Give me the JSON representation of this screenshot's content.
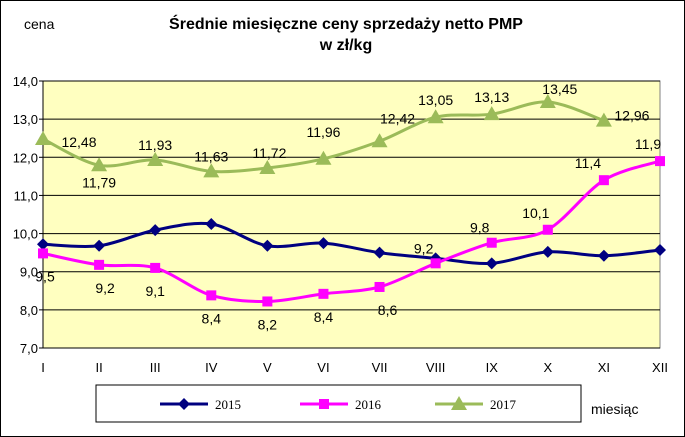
{
  "chart_data": {
    "type": "line",
    "title": "Średnie miesięczne ceny sprzedaży netto PMP",
    "subtitle": "w zł/kg",
    "ylabel": "cena",
    "xlabel": "miesiąc",
    "categories": [
      "I",
      "II",
      "III",
      "IV",
      "V",
      "VI",
      "VII",
      "VIII",
      "IX",
      "X",
      "XI",
      "XII"
    ],
    "ylim": [
      7.0,
      14.0
    ],
    "yticks": [
      "7,0",
      "8,0",
      "9,0",
      "10,0",
      "11,0",
      "12,0",
      "13,0",
      "14,0"
    ],
    "grid": true,
    "legend_position": "bottom",
    "plot_background": "#ffffc0",
    "series": [
      {
        "name": "2015",
        "color": "#000080",
        "marker": "diamond",
        "values": [
          9.72,
          9.68,
          10.09,
          10.25,
          9.68,
          9.75,
          9.5,
          9.35,
          9.22,
          9.52,
          9.42,
          9.57
        ],
        "labels": [
          "",
          "",
          "",
          "",
          "",
          "",
          "",
          "",
          "",
          "",
          "",
          ""
        ]
      },
      {
        "name": "2016",
        "color": "#ff00ff",
        "marker": "square",
        "values": [
          9.48,
          9.18,
          9.1,
          8.38,
          8.22,
          8.42,
          8.6,
          9.22,
          9.76,
          10.1,
          11.4,
          11.9
        ],
        "labels": [
          "9,5",
          "9,2",
          "9,1",
          "8,4",
          "8,2",
          "8,4",
          "8,6",
          "9,2",
          "9,8",
          "10,1",
          "11,4",
          "11,9"
        ]
      },
      {
        "name": "2017",
        "color": "#9bbb59",
        "marker": "triangle",
        "values": [
          12.48,
          11.79,
          11.93,
          11.63,
          11.72,
          11.96,
          12.42,
          13.05,
          13.13,
          13.45,
          12.96,
          null
        ],
        "labels": [
          "12,48",
          "11,79",
          "11,93",
          "11,63",
          "11,72",
          "11,96",
          "12,42",
          "13,05",
          "13,13",
          "13,45",
          "12,96",
          ""
        ]
      }
    ]
  }
}
